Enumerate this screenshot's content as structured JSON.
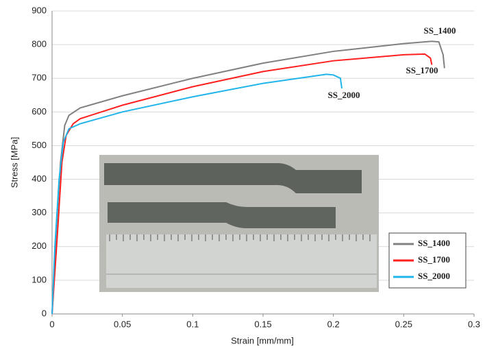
{
  "chart_data": {
    "type": "line",
    "xlabel": "Strain [mm/mm]",
    "ylabel": "Stress [MPa]",
    "xlim": [
      0,
      0.3
    ],
    "xticks": [
      0,
      0.05,
      0.1,
      0.15,
      0.2,
      0.25,
      0.3
    ],
    "ylim": [
      0,
      900
    ],
    "yticks": [
      0,
      100,
      200,
      300,
      400,
      500,
      600,
      700,
      800,
      900
    ],
    "grid": true,
    "legend": "lower right",
    "annotations": [
      "SS_1400",
      "SS_1700",
      "SS_2000"
    ],
    "series": [
      {
        "name": "SS_1400",
        "color": "#808080",
        "x": [
          0,
          0.003,
          0.006,
          0.009,
          0.012,
          0.02,
          0.05,
          0.1,
          0.15,
          0.2,
          0.25,
          0.27,
          0.275,
          0.278,
          0.279
        ],
        "values": [
          0,
          250,
          450,
          560,
          590,
          612,
          648,
          700,
          745,
          780,
          803,
          810,
          808,
          770,
          730
        ]
      },
      {
        "name": "SS_1700",
        "color": "#ff1f1f",
        "x": [
          0,
          0.004,
          0.007,
          0.01,
          0.015,
          0.02,
          0.05,
          0.1,
          0.15,
          0.2,
          0.25,
          0.265,
          0.269,
          0.27
        ],
        "values": [
          0,
          250,
          450,
          530,
          565,
          580,
          620,
          675,
          720,
          752,
          770,
          772,
          760,
          740
        ]
      },
      {
        "name": "SS_2000",
        "color": "#1fb4ea",
        "x": [
          0,
          0.002,
          0.005,
          0.008,
          0.012,
          0.02,
          0.05,
          0.1,
          0.15,
          0.195,
          0.2,
          0.205,
          0.206
        ],
        "values": [
          0,
          200,
          400,
          510,
          550,
          565,
          600,
          645,
          685,
          712,
          710,
          700,
          670
        ]
      }
    ]
  }
}
